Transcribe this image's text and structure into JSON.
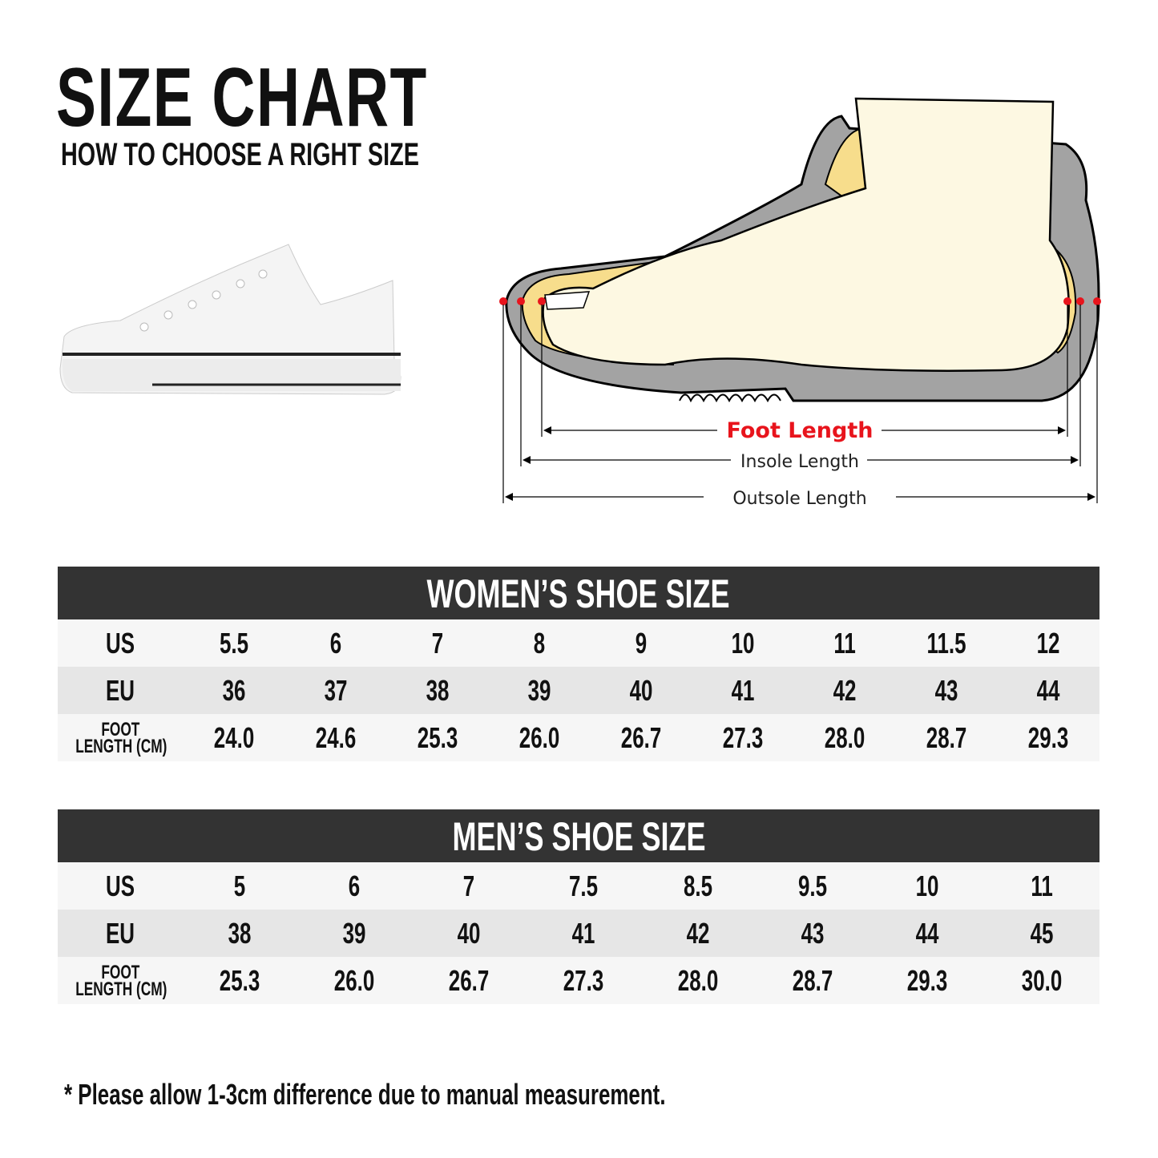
{
  "header": {
    "title": "SIZE CHART",
    "subtitle": "HOW TO CHOOSE A RIGHT SIZE"
  },
  "diagram": {
    "foot_length": "Foot Length",
    "insole_length": "Insole Length",
    "outsole_length": "Outsole Length",
    "accent_color": "#e8141c"
  },
  "row_labels": {
    "us": "US",
    "eu": "EU",
    "foot_1": "FOOT",
    "foot_2": "LENGTH (CM)"
  },
  "women": {
    "title": "WOMEN’S SHOE SIZE",
    "us": [
      "5.5",
      "6",
      "7",
      "8",
      "9",
      "10",
      "11",
      "11.5",
      "12"
    ],
    "eu": [
      "36",
      "37",
      "38",
      "39",
      "40",
      "41",
      "42",
      "43",
      "44"
    ],
    "foot": [
      "24.0",
      "24.6",
      "25.3",
      "26.0",
      "26.7",
      "27.3",
      "28.0",
      "28.7",
      "29.3"
    ]
  },
  "men": {
    "title": "MEN’S SHOE SIZE",
    "us": [
      "5",
      "6",
      "7",
      "7.5",
      "8.5",
      "9.5",
      "10",
      "11"
    ],
    "eu": [
      "38",
      "39",
      "40",
      "41",
      "42",
      "43",
      "44",
      "45"
    ],
    "foot": [
      "25.3",
      "26.0",
      "26.7",
      "27.3",
      "28.0",
      "28.7",
      "29.3",
      "30.0"
    ]
  },
  "note": "* Please allow 1-3cm difference due to manual measurement."
}
